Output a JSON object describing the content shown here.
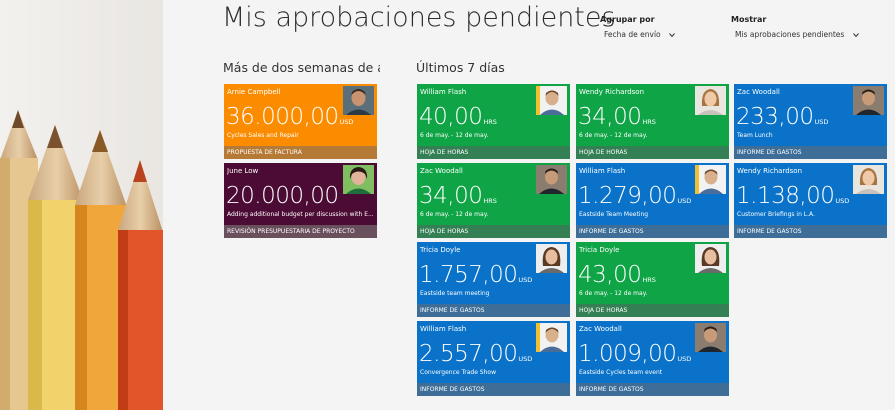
{
  "page": {
    "title": "Mis aprobaciones pendientes"
  },
  "controls": {
    "group_label": "Agrupar por",
    "group_value": "Fecha de envío",
    "show_label": "Mostrar",
    "show_value": "Mis aprobaciones pendientes"
  },
  "sections": {
    "older": "Más de dos semanas de ant",
    "recent": "Últimos 7 días"
  },
  "colors": {
    "orange": "#fb8c00",
    "maroon": "#4c0b34",
    "green": "#0fa546",
    "blue": "#0a72c9"
  },
  "tiles": [
    {
      "name": "Arnie Campbell",
      "value": "36.000,00",
      "unit": "USD",
      "sub": "Cycles Sales and Repair",
      "category": "PROPUESTA DE FACTURA"
    },
    {
      "name": "June Low",
      "value": "20.000,00",
      "unit": "",
      "sub": "Adding additional budget per discussion with E...",
      "category": "REVISIÓN PRESUPUESTARIA DE PROYECTO"
    },
    {
      "name": "William Flash",
      "value": "40,00",
      "unit": "HRS",
      "sub": "6 de may. - 12 de may.",
      "category": "HOJA DE HORAS"
    },
    {
      "name": "Wendy Richardson",
      "value": "34,00",
      "unit": "HRS",
      "sub": "6 de may. - 12 de may.",
      "category": "HOJA DE HORAS"
    },
    {
      "name": "Zac Woodall",
      "value": "233,00",
      "unit": "USD",
      "sub": "Team Lunch",
      "category": "INFORME DE GASTOS"
    },
    {
      "name": "Zac Woodall",
      "value": "34,00",
      "unit": "HRS",
      "sub": "6 de may. - 12 de may.",
      "category": "HOJA DE HORAS"
    },
    {
      "name": "William Flash",
      "value": "1.279,00",
      "unit": "USD",
      "sub": "Eastside Team Meeting",
      "category": "INFORME DE GASTOS"
    },
    {
      "name": "Wendy Richardson",
      "value": "1.138,00",
      "unit": "USD",
      "sub": "Customer Briefings in L.A.",
      "category": "INFORME DE GASTOS"
    },
    {
      "name": "Tricia Doyle",
      "value": "1.757,00",
      "unit": "USD",
      "sub": "Eastside team meeting",
      "category": "INFORME DE GASTOS"
    },
    {
      "name": "Tricia Doyle",
      "value": "43,00",
      "unit": "HRS",
      "sub": "6 de may. - 12 de may.",
      "category": "HOJA DE HORAS"
    },
    {
      "name": "William Flash",
      "value": "2.557,00",
      "unit": "USD",
      "sub": "Convergence Trade Show",
      "category": "INFORME DE GASTOS"
    },
    {
      "name": "Zac Woodall",
      "value": "1.009,00",
      "unit": "USD",
      "sub": "Eastside Cycles team event",
      "category": "INFORME DE GASTOS"
    }
  ]
}
